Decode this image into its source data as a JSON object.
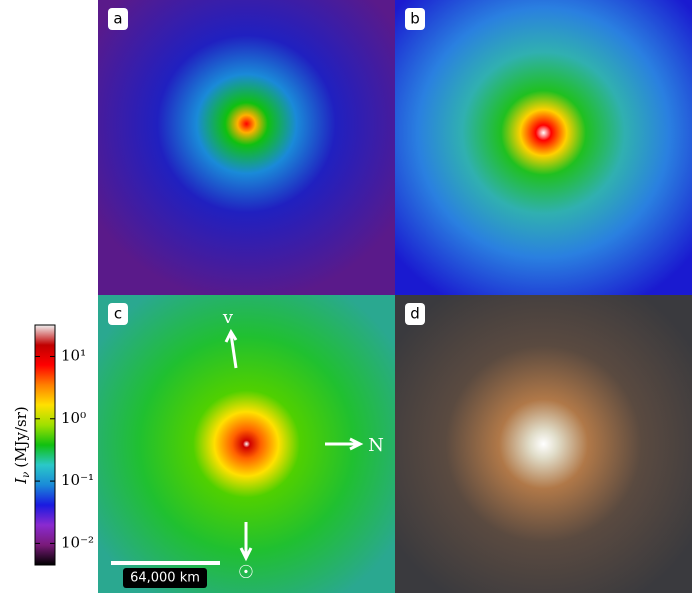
{
  "panels": [
    {
      "label": "a"
    },
    {
      "label": "b"
    },
    {
      "label": "c"
    },
    {
      "label": "d"
    }
  ],
  "colorbar": {
    "label": "I",
    "label_sub": "ν",
    "label_unit": "(MJy/sr)",
    "scale": "log",
    "range": [
      0.0045,
      32
    ],
    "colors": [
      "#000000",
      "#7a1a7a",
      "#8a2ad0",
      "#1a1ae0",
      "#1a8ad8",
      "#2ac8c8",
      "#10c010",
      "#a0e000",
      "#ffe000",
      "#ff8000",
      "#ff0000",
      "#c00000",
      "#f0f0f0"
    ],
    "ticks": [
      {
        "value": 0.01,
        "label": "10⁻²"
      },
      {
        "value": 0.1,
        "label": "10⁻¹"
      },
      {
        "value": 1,
        "label": "10⁰"
      },
      {
        "value": 10,
        "label": "10¹"
      }
    ]
  },
  "annotations": {
    "velocity": "v",
    "north": "N",
    "sun": "☉",
    "scale_bar": "64,000 km"
  }
}
